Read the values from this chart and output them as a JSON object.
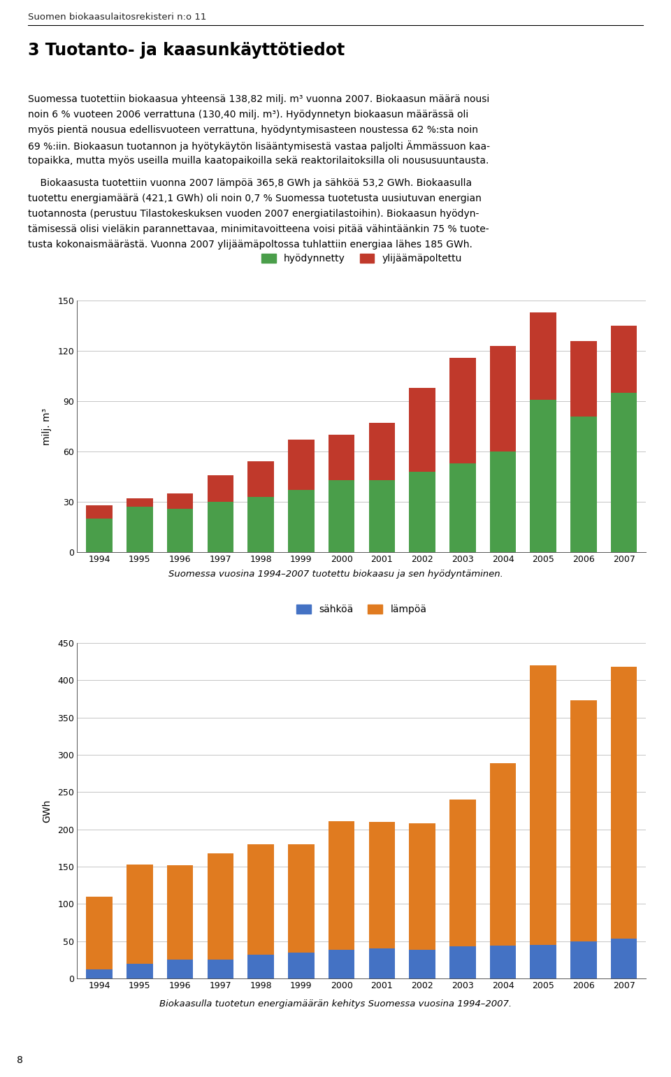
{
  "page_header": "Suomen biokaasulaitosrekisteri n:o 11",
  "section_title": "3 Tuotanto- ja kaasunkäyttötiedot",
  "body_lines_1": [
    "Suomessa tuotettiin biokaasua yhteensä 138,82 milj. m³ vuonna 2007. Biokaasun määrä nousi",
    "noin 6 % vuoteen 2006 verrattuna (130,40 milj. m³). Hyödynnetyn biokaasun määrässä oli",
    "myös pientä nousua edellisvuoteen verrattuna, hyödyntymisasteen noustessa 62 %:sta noin",
    "69 %:iin. Biokaasun tuotannon ja hyötykäytön lisääntymisestä vastaa paljolti Ämmässuon kaa-",
    "topaikka, mutta myös useilla muilla kaatopaikoilla sekä reaktorilaitoksilla oli noususuuntausta."
  ],
  "body_lines_2": [
    "    Biokaasusta tuotettiin vuonna 2007 lämpöä 365,8 GWh ja sähköä 53,2 GWh. Biokaasulla",
    "tuotettu energiamäärä (421,1 GWh) oli noin 0,7 % Suomessa tuotetusta uusiutuvan energian",
    "tuotannosta (perustuu Tilastokeskuksen vuoden 2007 energiatilastoihin). Biokaasun hyödyn-",
    "tämisessä olisi vieläkin parannettavaa, minimitavoitteena voisi pitää vähintäänkin 75 % tuote-",
    "tusta kokonaismäärästä. Vuonna 2007 ylijäämäpoltossa tuhlattiin energiaa lähes 185 GWh."
  ],
  "chart1": {
    "years": [
      1994,
      1995,
      1996,
      1997,
      1998,
      1999,
      2000,
      2001,
      2002,
      2003,
      2004,
      2005,
      2006,
      2007
    ],
    "hyodynnetty": [
      20,
      27,
      26,
      30,
      33,
      37,
      43,
      43,
      48,
      53,
      60,
      91,
      81,
      95
    ],
    "ylijaamapoltettu": [
      8,
      5,
      9,
      16,
      21,
      30,
      27,
      34,
      50,
      63,
      63,
      52,
      45,
      40
    ],
    "ylabel": "milj. m³",
    "ylim": [
      0,
      150
    ],
    "yticks": [
      0,
      30,
      60,
      90,
      120,
      150
    ],
    "legend_hyodynnetty": "hyödynnetty",
    "legend_ylijaamapoltettu": "ylijäämäpoltettu",
    "color_hyodynnetty": "#4a9e4a",
    "color_ylijaamapoltettu": "#c0392b",
    "caption": "Suomessa vuosina 1994–2007 tuotettu biokaasu ja sen hyödyntäminen."
  },
  "chart2": {
    "years": [
      1994,
      1995,
      1996,
      1997,
      1998,
      1999,
      2000,
      2001,
      2002,
      2003,
      2004,
      2005,
      2006,
      2007
    ],
    "sahkoa": [
      12,
      20,
      25,
      25,
      32,
      35,
      38,
      40,
      38,
      43,
      44,
      45,
      50,
      53
    ],
    "lampoa": [
      98,
      133,
      127,
      143,
      148,
      145,
      173,
      170,
      170,
      197,
      245,
      375,
      323,
      365
    ],
    "ylabel": "GWh",
    "ylim": [
      0,
      450
    ],
    "yticks": [
      0,
      50,
      100,
      150,
      200,
      250,
      300,
      350,
      400,
      450
    ],
    "legend_sahkoa": "sähköä",
    "legend_lampoa": "lämpöä",
    "color_sahkoa": "#4472c4",
    "color_lampoa": "#e07b20",
    "caption": "Biokaasulla tuotetun energiamäärän kehitys Suomessa vuosina 1994–2007."
  },
  "background_color": "#ffffff",
  "text_color": "#000000",
  "grid_color": "#bbbbbb",
  "page_number": "8"
}
